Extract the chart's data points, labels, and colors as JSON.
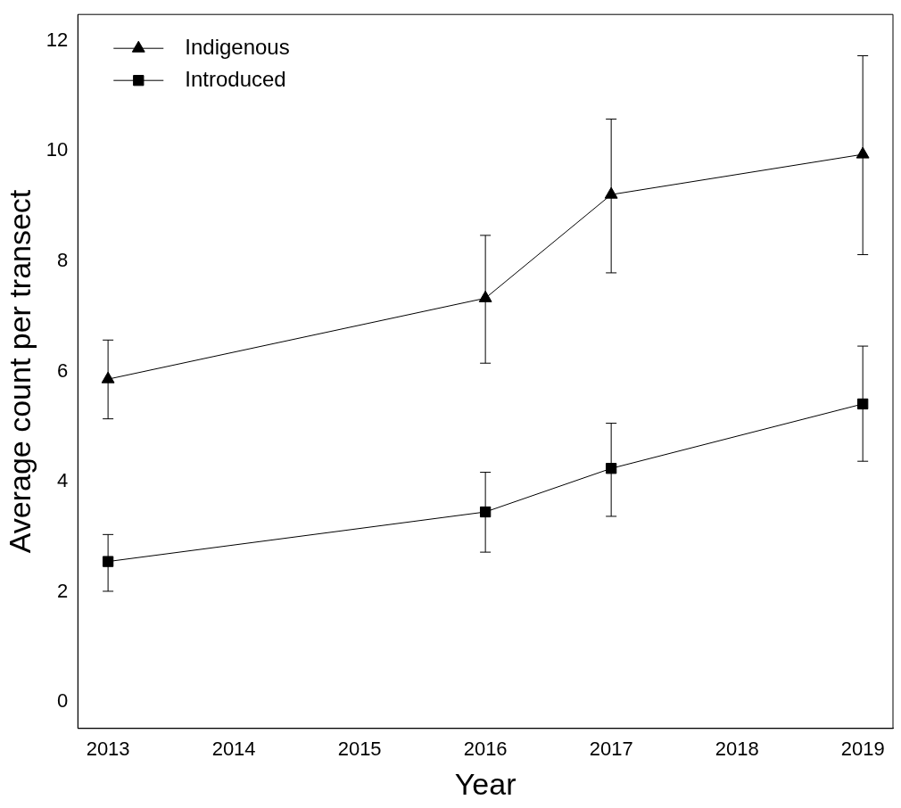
{
  "chart_data": {
    "type": "line",
    "xlabel": "Year",
    "ylabel": "Average count per transect",
    "x": [
      2013,
      2016,
      2017,
      2019
    ],
    "series": [
      {
        "name": "Indigenous",
        "color": "#000000",
        "marker": "triangle",
        "values": [
          5.86,
          7.33,
          9.21,
          9.94
        ],
        "errors": [
          [
            5.14,
            6.57
          ],
          [
            6.15,
            8.47
          ],
          [
            7.79,
            10.58
          ],
          [
            8.12,
            11.73
          ]
        ]
      },
      {
        "name": "Introduced",
        "color": "#000000",
        "marker": "square",
        "values": [
          2.55,
          3.45,
          4.24,
          5.41
        ],
        "errors": [
          [
            2.01,
            3.04
          ],
          [
            2.72,
            4.17
          ],
          [
            3.37,
            5.06
          ],
          [
            4.37,
            6.46
          ]
        ]
      }
    ],
    "xlim": [
      2012.76,
      2019.24
    ],
    "xticks": [
      2013,
      2014,
      2015,
      2016,
      2017,
      2018,
      2019
    ],
    "ylim": [
      -0.48,
      12.48
    ],
    "yticks": [
      0,
      2,
      4,
      6,
      8,
      10,
      12
    ],
    "grid": false,
    "legend": "top left",
    "line_style": "solid"
  }
}
